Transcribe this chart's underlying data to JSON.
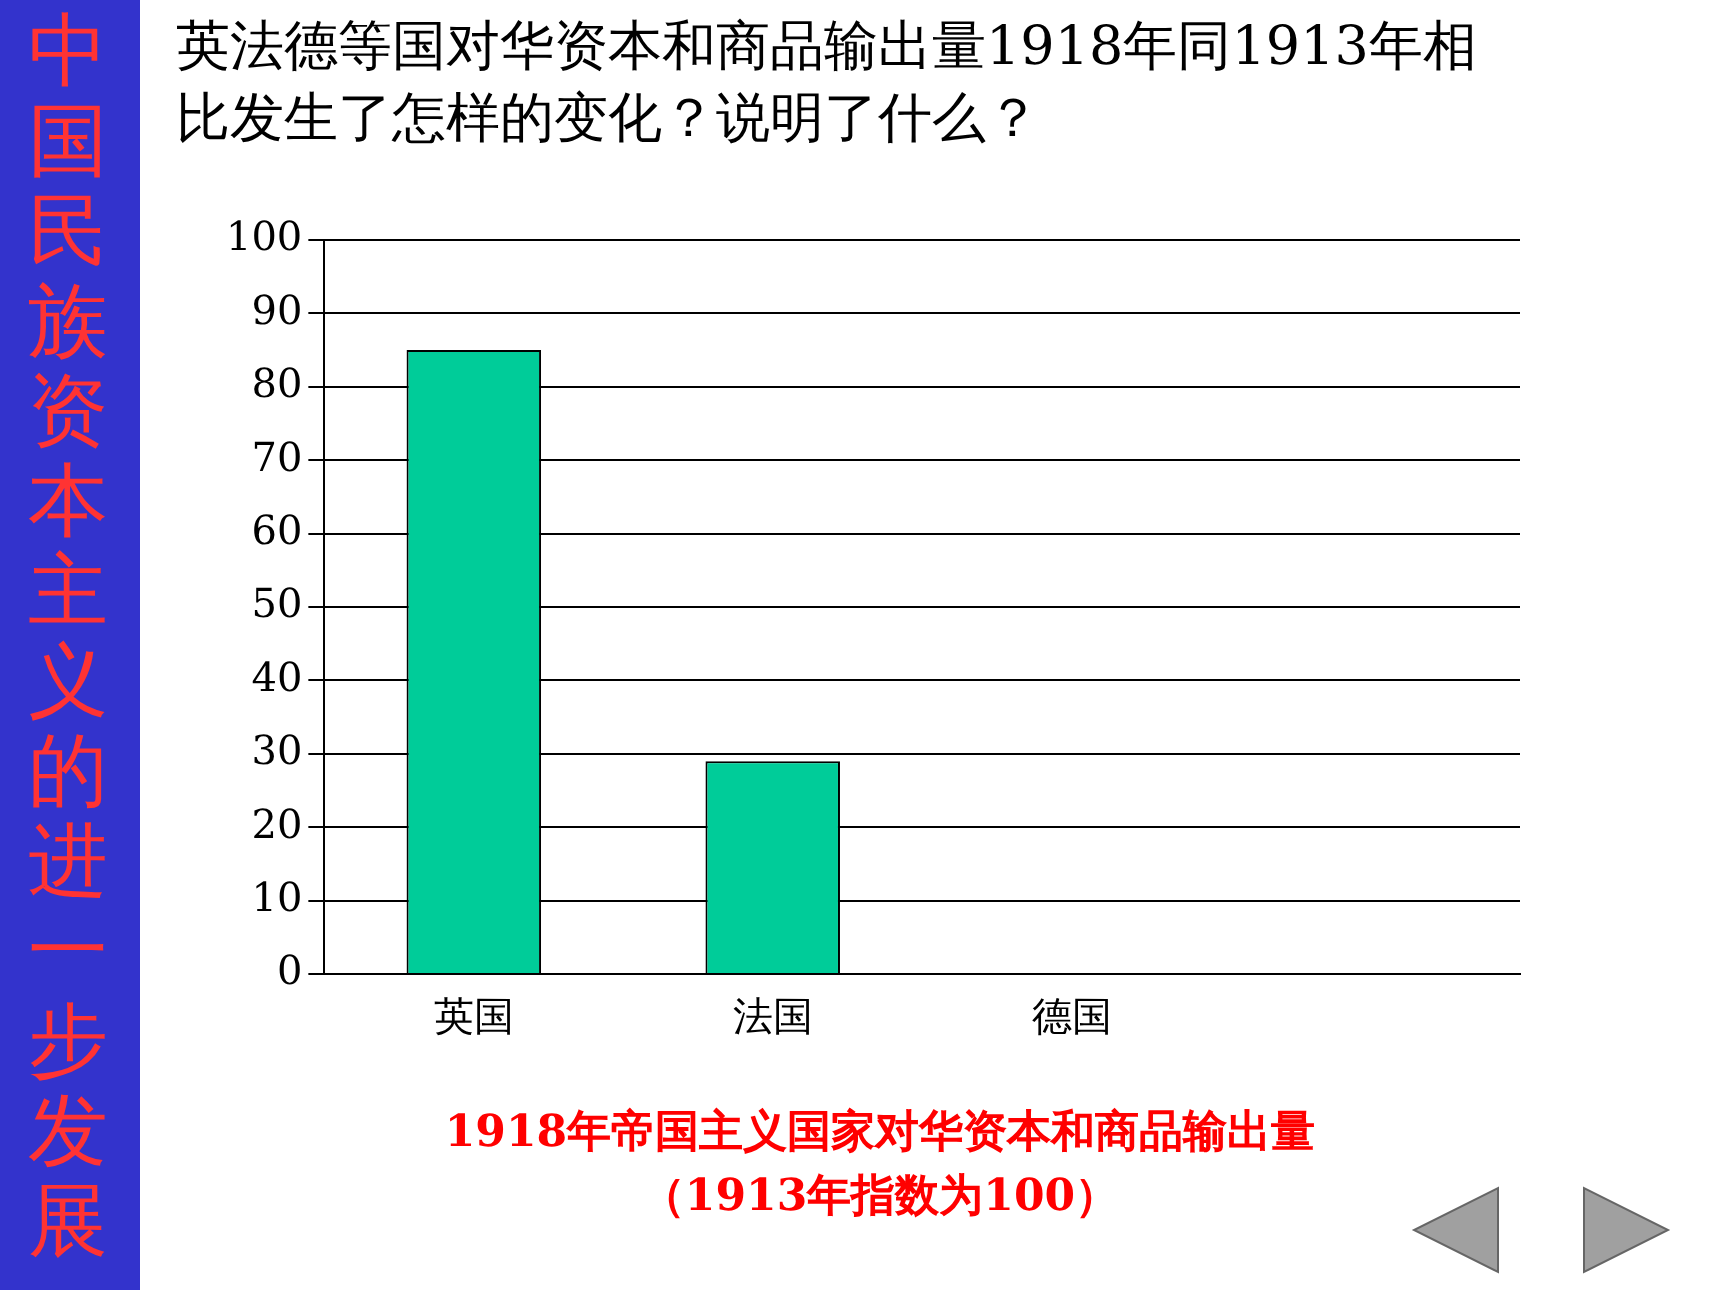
{
  "chart_data": {
    "type": "bar",
    "title": "英法德等国对华资本和商品输出量1918年同1913年相比发生了怎样的变化？说明了什么？",
    "categories": [
      "英国",
      "法国",
      "德国",
      null
    ],
    "values": [
      85,
      29,
      0,
      null
    ],
    "color": "#00cc99",
    "ylim": [
      0,
      100
    ],
    "yticks": [
      0,
      10,
      20,
      30,
      40,
      50,
      60,
      70,
      80,
      90,
      100
    ],
    "grid": "y",
    "annotations": [
      "中国民族资本主义的进一步发展",
      "1918年帝国主义国家对华资本和商品输出量",
      "（1913年指数为100）"
    ]
  }
}
